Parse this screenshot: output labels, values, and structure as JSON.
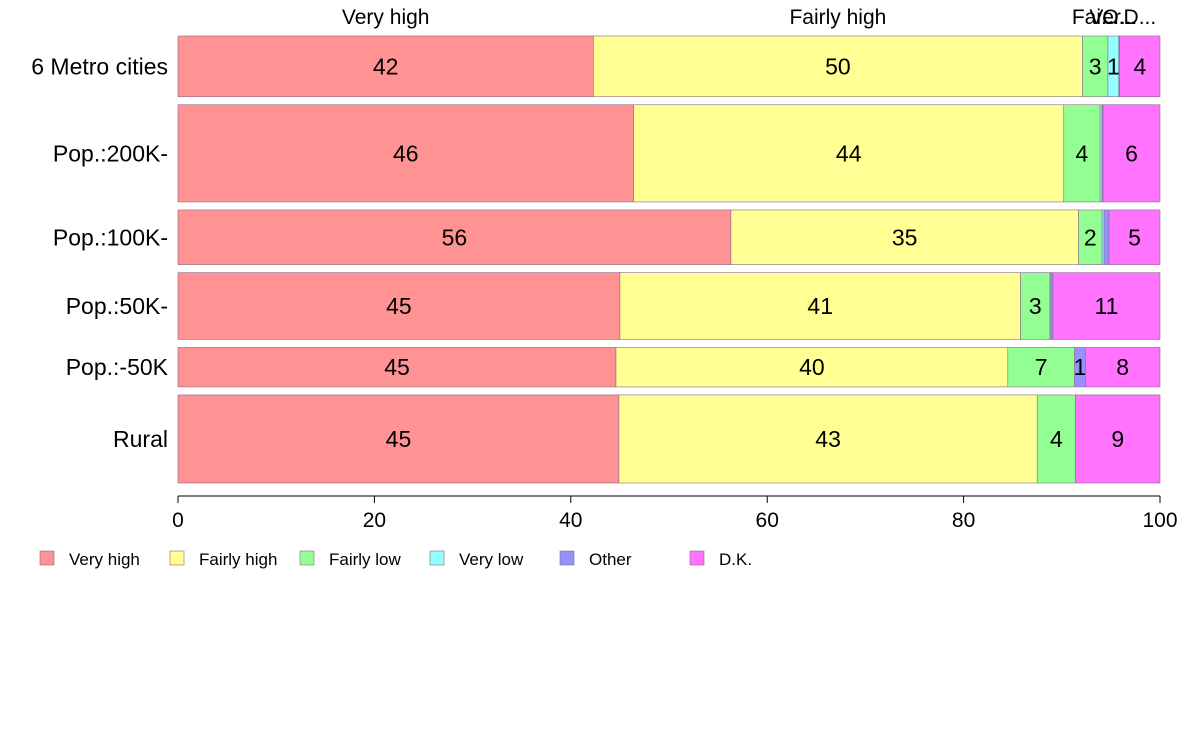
{
  "chart_data": {
    "type": "bar",
    "orientation": "horizontal",
    "stacked": true,
    "categories": [
      "6 Metro cities",
      "Pop.:200K-",
      "Pop.:100K-",
      "Pop.:50K-",
      "Pop.:-50K",
      "Rural"
    ],
    "bar_weights": [
      1.0,
      1.6,
      0.9,
      1.1,
      0.65,
      1.45
    ],
    "series": [
      {
        "name": "Very high",
        "color": "#ff9393",
        "values": [
          42.3,
          46.4,
          56.3,
          45.0,
          44.6,
          44.9
        ],
        "labels": [
          "42",
          "46",
          "56",
          "45",
          "45",
          "45"
        ]
      },
      {
        "name": "Fairly high",
        "color": "#ffff93",
        "values": [
          49.8,
          43.8,
          35.4,
          40.8,
          39.9,
          42.6
        ],
        "labels": [
          "50",
          "44",
          "35",
          "41",
          "40",
          "43"
        ]
      },
      {
        "name": "Fairly low",
        "color": "#93ff93",
        "values": [
          2.6,
          3.7,
          2.4,
          3.0,
          6.8,
          3.9
        ],
        "labels": [
          "3",
          "4",
          "2",
          "3",
          "7",
          "4"
        ]
      },
      {
        "name": "Very low",
        "color": "#93ffff",
        "values": [
          1.1,
          0.2,
          0.2,
          0.1,
          0.0,
          0.0
        ],
        "labels": [
          "1",
          "",
          "",
          "",
          "",
          ""
        ]
      },
      {
        "name": "Other",
        "color": "#9393ff",
        "values": [
          0.1,
          0.1,
          0.5,
          0.2,
          1.1,
          0.0
        ],
        "labels": [
          "",
          "",
          "",
          "",
          "1",
          ""
        ]
      },
      {
        "name": "D.K.",
        "color": "#ff73ff",
        "values": [
          4.1,
          5.8,
          5.2,
          10.9,
          7.6,
          8.6
        ],
        "labels": [
          "4",
          "6",
          "5",
          "11",
          "8",
          "9"
        ]
      }
    ],
    "top_labels": [
      "Very high",
      "Fairly high",
      "Fairly low",
      "Very low",
      "Other",
      "D.K."
    ],
    "top_labels_displayed": [
      "Very high",
      "Fairly high",
      "Fai...",
      "Ver...",
      "O...",
      "D..."
    ],
    "xlim": [
      0,
      100
    ],
    "xticks": [
      0,
      20,
      40,
      60,
      80,
      100
    ],
    "legend_position": "bottom-left",
    "grid": false
  }
}
